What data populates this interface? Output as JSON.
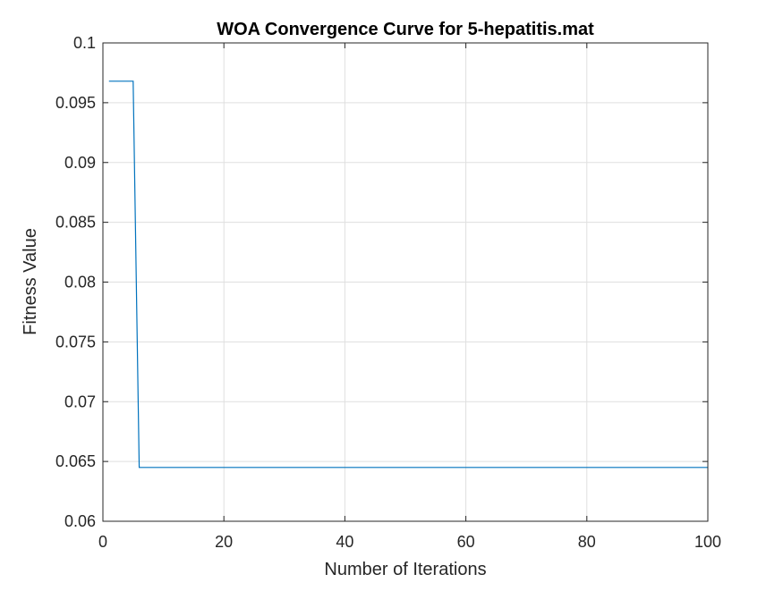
{
  "chart_data": {
    "type": "line",
    "title": "WOA Convergence Curve for 5-hepatitis.mat",
    "xlabel": "Number of Iterations",
    "ylabel": "Fitness Value",
    "xlim": [
      0,
      100
    ],
    "ylim": [
      0.06,
      0.1
    ],
    "xticks": [
      0,
      20,
      40,
      60,
      80,
      100
    ],
    "xtick_labels": [
      "0",
      "20",
      "40",
      "60",
      "80",
      "100"
    ],
    "yticks": [
      0.06,
      0.065,
      0.07,
      0.075,
      0.08,
      0.085,
      0.09,
      0.095,
      0.1
    ],
    "ytick_labels": [
      "0.06",
      "0.065",
      "0.07",
      "0.075",
      "0.08",
      "0.085",
      "0.09",
      "0.095",
      "0.1"
    ],
    "grid": true,
    "series": [
      {
        "color": "#0072BD",
        "points": [
          [
            1,
            0.0968
          ],
          [
            5,
            0.0968
          ],
          [
            6,
            0.0645
          ],
          [
            100,
            0.0645
          ]
        ]
      }
    ]
  }
}
